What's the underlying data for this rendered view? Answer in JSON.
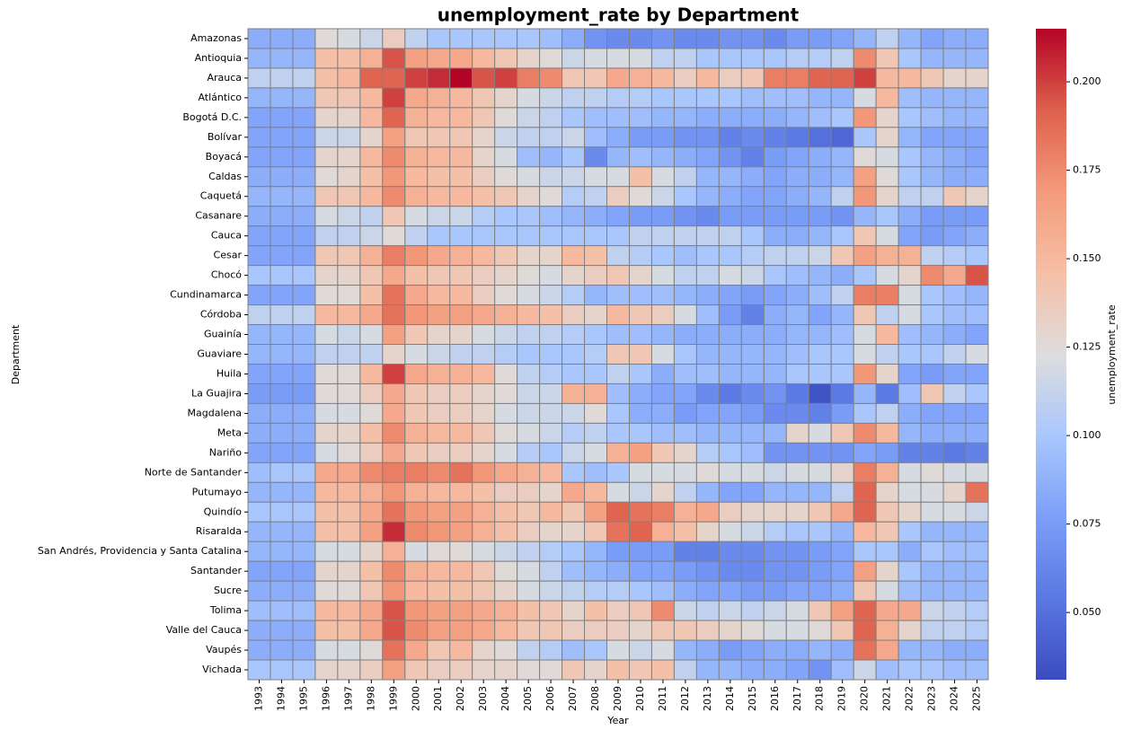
{
  "chart_data": {
    "type": "heatmap",
    "title": "unemployment_rate by Department",
    "xlabel": "Year",
    "ylabel": "Department",
    "colorbar_label": "unemployment_rate",
    "colormap": "coolwarm",
    "x": [
      1993,
      1994,
      1995,
      1996,
      1997,
      1998,
      1999,
      2000,
      2001,
      2002,
      2003,
      2004,
      2005,
      2006,
      2007,
      2008,
      2009,
      2010,
      2011,
      2012,
      2013,
      2014,
      2015,
      2016,
      2017,
      2018,
      2019,
      2020,
      2021,
      2022,
      2023,
      2024,
      2025
    ],
    "y": [
      "Amazonas",
      "Antioquia",
      "Arauca",
      "Atlántico",
      "Bogotá D.C.",
      "Bolívar",
      "Boyacá",
      "Caldas",
      "Caquetá",
      "Casanare",
      "Cauca",
      "Cesar",
      "Chocó",
      "Cundinamarca",
      "Córdoba",
      "Guainía",
      "Guaviare",
      "Huila",
      "La Guajira",
      "Magdalena",
      "Meta",
      "Nariño",
      "Norte de Santander",
      "Putumayo",
      "Quindío",
      "Risaralda",
      "San Andrés, Providencia y Santa Catalina",
      "Santander",
      "Sucre",
      "Tolima",
      "Valle del Cauca",
      "Vaupés",
      "Vichada"
    ],
    "values": [
      [
        0.085,
        0.085,
        0.085,
        0.125,
        0.12,
        0.115,
        0.135,
        0.11,
        0.1,
        0.1,
        0.1,
        0.1,
        0.1,
        0.095,
        0.085,
        0.07,
        0.065,
        0.065,
        0.07,
        0.065,
        0.065,
        0.07,
        0.07,
        0.065,
        0.075,
        0.075,
        0.08,
        0.09,
        0.11,
        0.09,
        0.08,
        0.085,
        0.085
      ],
      [
        0.09,
        0.09,
        0.09,
        0.145,
        0.145,
        0.155,
        0.195,
        0.165,
        0.16,
        0.16,
        0.15,
        0.14,
        0.13,
        0.125,
        0.115,
        0.12,
        0.12,
        0.12,
        0.11,
        0.11,
        0.1,
        0.1,
        0.1,
        0.1,
        0.105,
        0.105,
        0.11,
        0.175,
        0.14,
        0.1,
        0.09,
        0.09,
        0.09
      ],
      [
        0.11,
        0.11,
        0.11,
        0.145,
        0.15,
        0.19,
        0.19,
        0.2,
        0.205,
        0.215,
        0.195,
        0.2,
        0.18,
        0.175,
        0.14,
        0.14,
        0.16,
        0.155,
        0.15,
        0.135,
        0.15,
        0.135,
        0.14,
        0.18,
        0.18,
        0.19,
        0.19,
        0.2,
        0.15,
        0.15,
        0.14,
        0.13,
        0.13
      ],
      [
        0.09,
        0.09,
        0.09,
        0.14,
        0.14,
        0.15,
        0.2,
        0.16,
        0.155,
        0.15,
        0.14,
        0.13,
        0.12,
        0.115,
        0.11,
        0.11,
        0.105,
        0.105,
        0.1,
        0.1,
        0.1,
        0.1,
        0.095,
        0.095,
        0.095,
        0.09,
        0.09,
        0.12,
        0.15,
        0.095,
        0.09,
        0.09,
        0.09
      ],
      [
        0.08,
        0.08,
        0.08,
        0.13,
        0.13,
        0.15,
        0.19,
        0.155,
        0.15,
        0.15,
        0.14,
        0.125,
        0.115,
        0.11,
        0.1,
        0.095,
        0.095,
        0.095,
        0.09,
        0.09,
        0.085,
        0.085,
        0.085,
        0.085,
        0.09,
        0.095,
        0.1,
        0.17,
        0.13,
        0.1,
        0.095,
        0.09,
        0.09
      ],
      [
        0.08,
        0.08,
        0.08,
        0.115,
        0.115,
        0.13,
        0.165,
        0.14,
        0.14,
        0.14,
        0.13,
        0.115,
        0.11,
        0.11,
        0.115,
        0.095,
        0.085,
        0.075,
        0.075,
        0.07,
        0.07,
        0.06,
        0.065,
        0.06,
        0.055,
        0.05,
        0.045,
        0.1,
        0.13,
        0.09,
        0.08,
        0.08,
        0.08
      ],
      [
        0.08,
        0.08,
        0.08,
        0.13,
        0.13,
        0.15,
        0.175,
        0.155,
        0.15,
        0.15,
        0.13,
        0.12,
        0.095,
        0.09,
        0.1,
        0.065,
        0.09,
        0.095,
        0.09,
        0.085,
        0.08,
        0.07,
        0.06,
        0.075,
        0.08,
        0.085,
        0.09,
        0.125,
        0.12,
        0.1,
        0.09,
        0.085,
        0.08
      ],
      [
        0.085,
        0.085,
        0.085,
        0.125,
        0.13,
        0.145,
        0.17,
        0.15,
        0.145,
        0.145,
        0.135,
        0.125,
        0.12,
        0.115,
        0.115,
        0.12,
        0.12,
        0.145,
        0.12,
        0.11,
        0.09,
        0.09,
        0.085,
        0.08,
        0.085,
        0.085,
        0.09,
        0.165,
        0.125,
        0.1,
        0.09,
        0.085,
        0.085
      ],
      [
        0.09,
        0.09,
        0.09,
        0.14,
        0.14,
        0.15,
        0.175,
        0.155,
        0.15,
        0.15,
        0.145,
        0.14,
        0.13,
        0.125,
        0.105,
        0.11,
        0.135,
        0.125,
        0.115,
        0.1,
        0.09,
        0.085,
        0.08,
        0.08,
        0.085,
        0.09,
        0.11,
        0.17,
        0.13,
        0.11,
        0.11,
        0.14,
        0.13
      ],
      [
        0.085,
        0.085,
        0.085,
        0.12,
        0.115,
        0.11,
        0.14,
        0.12,
        0.115,
        0.115,
        0.105,
        0.1,
        0.1,
        0.095,
        0.09,
        0.085,
        0.08,
        0.075,
        0.075,
        0.07,
        0.065,
        0.075,
        0.075,
        0.075,
        0.075,
        0.075,
        0.07,
        0.09,
        0.1,
        0.085,
        0.075,
        0.075,
        0.075
      ],
      [
        0.08,
        0.08,
        0.08,
        0.11,
        0.11,
        0.115,
        0.125,
        0.11,
        0.1,
        0.1,
        0.1,
        0.1,
        0.1,
        0.1,
        0.1,
        0.1,
        0.1,
        0.11,
        0.11,
        0.11,
        0.11,
        0.11,
        0.1,
        0.085,
        0.085,
        0.09,
        0.1,
        0.14,
        0.12,
        0.08,
        0.075,
        0.08,
        0.085
      ],
      [
        0.08,
        0.08,
        0.08,
        0.14,
        0.14,
        0.155,
        0.18,
        0.17,
        0.16,
        0.155,
        0.15,
        0.14,
        0.13,
        0.13,
        0.15,
        0.145,
        0.11,
        0.105,
        0.1,
        0.095,
        0.1,
        0.1,
        0.105,
        0.11,
        0.11,
        0.115,
        0.14,
        0.165,
        0.155,
        0.155,
        0.11,
        0.105,
        0.1
      ],
      [
        0.1,
        0.1,
        0.1,
        0.13,
        0.13,
        0.14,
        0.16,
        0.145,
        0.14,
        0.14,
        0.135,
        0.13,
        0.125,
        0.12,
        0.13,
        0.135,
        0.14,
        0.13,
        0.12,
        0.11,
        0.11,
        0.12,
        0.115,
        0.1,
        0.095,
        0.09,
        0.085,
        0.1,
        0.12,
        0.13,
        0.175,
        0.16,
        0.195
      ],
      [
        0.08,
        0.08,
        0.08,
        0.125,
        0.125,
        0.145,
        0.185,
        0.16,
        0.15,
        0.15,
        0.135,
        0.125,
        0.12,
        0.115,
        0.105,
        0.09,
        0.095,
        0.095,
        0.095,
        0.09,
        0.085,
        0.08,
        0.075,
        0.08,
        0.085,
        0.095,
        0.11,
        0.18,
        0.18,
        0.12,
        0.1,
        0.095,
        0.09
      ],
      [
        0.11,
        0.11,
        0.11,
        0.15,
        0.15,
        0.16,
        0.185,
        0.17,
        0.165,
        0.165,
        0.16,
        0.155,
        0.15,
        0.145,
        0.135,
        0.13,
        0.15,
        0.14,
        0.135,
        0.12,
        0.095,
        0.075,
        0.06,
        0.085,
        0.09,
        0.08,
        0.09,
        0.14,
        0.11,
        0.12,
        0.1,
        0.095,
        0.095
      ],
      [
        0.09,
        0.09,
        0.09,
        0.12,
        0.115,
        0.12,
        0.165,
        0.14,
        0.13,
        0.13,
        0.12,
        0.115,
        0.11,
        0.11,
        0.105,
        0.1,
        0.095,
        0.095,
        0.09,
        0.085,
        0.085,
        0.085,
        0.085,
        0.085,
        0.09,
        0.09,
        0.095,
        0.12,
        0.15,
        0.095,
        0.09,
        0.085,
        0.08
      ],
      [
        0.09,
        0.09,
        0.09,
        0.11,
        0.11,
        0.11,
        0.13,
        0.12,
        0.115,
        0.11,
        0.11,
        0.105,
        0.1,
        0.1,
        0.1,
        0.105,
        0.14,
        0.14,
        0.12,
        0.1,
        0.09,
        0.09,
        0.09,
        0.09,
        0.095,
        0.1,
        0.1,
        0.12,
        0.11,
        0.1,
        0.1,
        0.11,
        0.12
      ],
      [
        0.08,
        0.08,
        0.08,
        0.125,
        0.125,
        0.15,
        0.2,
        0.16,
        0.155,
        0.155,
        0.15,
        0.125,
        0.11,
        0.105,
        0.1,
        0.1,
        0.11,
        0.1,
        0.085,
        0.095,
        0.095,
        0.09,
        0.09,
        0.09,
        0.1,
        0.1,
        0.1,
        0.17,
        0.13,
        0.08,
        0.075,
        0.08,
        0.08
      ],
      [
        0.075,
        0.075,
        0.075,
        0.125,
        0.125,
        0.135,
        0.16,
        0.14,
        0.135,
        0.135,
        0.13,
        0.125,
        0.115,
        0.115,
        0.155,
        0.155,
        0.095,
        0.085,
        0.08,
        0.08,
        0.065,
        0.055,
        0.065,
        0.07,
        0.055,
        0.035,
        0.055,
        0.09,
        0.055,
        0.095,
        0.14,
        0.11,
        0.1
      ],
      [
        0.085,
        0.085,
        0.085,
        0.12,
        0.12,
        0.125,
        0.16,
        0.14,
        0.135,
        0.135,
        0.13,
        0.12,
        0.115,
        0.115,
        0.115,
        0.125,
        0.1,
        0.085,
        0.085,
        0.075,
        0.08,
        0.08,
        0.075,
        0.065,
        0.065,
        0.06,
        0.075,
        0.1,
        0.11,
        0.085,
        0.08,
        0.08,
        0.08
      ],
      [
        0.085,
        0.085,
        0.085,
        0.13,
        0.13,
        0.145,
        0.175,
        0.155,
        0.15,
        0.15,
        0.14,
        0.125,
        0.12,
        0.115,
        0.105,
        0.11,
        0.1,
        0.1,
        0.095,
        0.095,
        0.09,
        0.09,
        0.09,
        0.09,
        0.13,
        0.12,
        0.14,
        0.175,
        0.15,
        0.09,
        0.085,
        0.085,
        0.085
      ],
      [
        0.08,
        0.08,
        0.08,
        0.12,
        0.125,
        0.135,
        0.16,
        0.14,
        0.135,
        0.135,
        0.13,
        0.12,
        0.105,
        0.1,
        0.115,
        0.12,
        0.155,
        0.165,
        0.14,
        0.13,
        0.105,
        0.1,
        0.095,
        0.07,
        0.07,
        0.07,
        0.07,
        0.08,
        0.075,
        0.06,
        0.06,
        0.055,
        0.06
      ],
      [
        0.095,
        0.1,
        0.1,
        0.16,
        0.16,
        0.175,
        0.18,
        0.18,
        0.175,
        0.185,
        0.17,
        0.16,
        0.155,
        0.15,
        0.1,
        0.095,
        0.1,
        0.12,
        0.12,
        0.12,
        0.125,
        0.12,
        0.12,
        0.115,
        0.12,
        0.12,
        0.13,
        0.18,
        0.155,
        0.12,
        0.125,
        0.12,
        0.12
      ],
      [
        0.09,
        0.09,
        0.09,
        0.15,
        0.15,
        0.155,
        0.17,
        0.155,
        0.15,
        0.15,
        0.145,
        0.135,
        0.135,
        0.13,
        0.16,
        0.15,
        0.12,
        0.115,
        0.13,
        0.11,
        0.09,
        0.08,
        0.08,
        0.09,
        0.09,
        0.09,
        0.11,
        0.19,
        0.13,
        0.12,
        0.12,
        0.13,
        0.185
      ],
      [
        0.1,
        0.1,
        0.1,
        0.145,
        0.145,
        0.16,
        0.185,
        0.17,
        0.165,
        0.165,
        0.155,
        0.145,
        0.14,
        0.15,
        0.14,
        0.165,
        0.19,
        0.185,
        0.18,
        0.155,
        0.16,
        0.135,
        0.13,
        0.13,
        0.13,
        0.14,
        0.16,
        0.19,
        0.14,
        0.13,
        0.12,
        0.12,
        0.115
      ],
      [
        0.09,
        0.09,
        0.09,
        0.145,
        0.145,
        0.165,
        0.205,
        0.175,
        0.17,
        0.165,
        0.155,
        0.145,
        0.135,
        0.13,
        0.13,
        0.14,
        0.185,
        0.19,
        0.155,
        0.145,
        0.13,
        0.12,
        0.115,
        0.105,
        0.1,
        0.1,
        0.09,
        0.15,
        0.14,
        0.1,
        0.09,
        0.09,
        0.09
      ],
      [
        0.09,
        0.09,
        0.09,
        0.12,
        0.12,
        0.13,
        0.155,
        0.12,
        0.125,
        0.125,
        0.12,
        0.115,
        0.11,
        0.105,
        0.1,
        0.09,
        0.075,
        0.075,
        0.075,
        0.06,
        0.06,
        0.065,
        0.065,
        0.07,
        0.07,
        0.075,
        0.08,
        0.1,
        0.1,
        0.085,
        0.1,
        0.095,
        0.095
      ],
      [
        0.08,
        0.08,
        0.08,
        0.13,
        0.13,
        0.145,
        0.175,
        0.155,
        0.15,
        0.15,
        0.14,
        0.125,
        0.12,
        0.11,
        0.095,
        0.09,
        0.085,
        0.08,
        0.08,
        0.075,
        0.07,
        0.065,
        0.065,
        0.07,
        0.07,
        0.075,
        0.08,
        0.165,
        0.13,
        0.1,
        0.09,
        0.09,
        0.09
      ],
      [
        0.085,
        0.085,
        0.085,
        0.125,
        0.125,
        0.14,
        0.17,
        0.15,
        0.145,
        0.145,
        0.14,
        0.13,
        0.12,
        0.115,
        0.11,
        0.105,
        0.105,
        0.1,
        0.095,
        0.085,
        0.08,
        0.08,
        0.075,
        0.075,
        0.08,
        0.08,
        0.085,
        0.14,
        0.12,
        0.095,
        0.09,
        0.09,
        0.09
      ],
      [
        0.095,
        0.095,
        0.095,
        0.15,
        0.15,
        0.16,
        0.195,
        0.17,
        0.165,
        0.165,
        0.16,
        0.155,
        0.145,
        0.14,
        0.13,
        0.145,
        0.135,
        0.14,
        0.175,
        0.115,
        0.11,
        0.115,
        0.11,
        0.115,
        0.12,
        0.14,
        0.165,
        0.19,
        0.16,
        0.16,
        0.115,
        0.11,
        0.105
      ],
      [
        0.085,
        0.085,
        0.085,
        0.145,
        0.145,
        0.16,
        0.195,
        0.175,
        0.165,
        0.165,
        0.16,
        0.15,
        0.14,
        0.14,
        0.135,
        0.135,
        0.135,
        0.13,
        0.14,
        0.14,
        0.135,
        0.13,
        0.125,
        0.12,
        0.12,
        0.125,
        0.14,
        0.19,
        0.155,
        0.13,
        0.11,
        0.11,
        0.105
      ],
      [
        0.085,
        0.085,
        0.085,
        0.12,
        0.12,
        0.125,
        0.185,
        0.16,
        0.14,
        0.15,
        0.13,
        0.125,
        0.11,
        0.105,
        0.095,
        0.1,
        0.12,
        0.115,
        0.12,
        0.09,
        0.085,
        0.075,
        0.08,
        0.085,
        0.085,
        0.09,
        0.085,
        0.185,
        0.16,
        0.09,
        0.09,
        0.085,
        0.085
      ],
      [
        0.1,
        0.1,
        0.1,
        0.13,
        0.13,
        0.135,
        0.165,
        0.14,
        0.135,
        0.135,
        0.13,
        0.13,
        0.125,
        0.125,
        0.14,
        0.13,
        0.145,
        0.14,
        0.145,
        0.11,
        0.09,
        0.09,
        0.085,
        0.085,
        0.08,
        0.07,
        0.095,
        0.115,
        0.095,
        0.1,
        0.1,
        0.095,
        0.095
      ]
    ],
    "zlim": [
      0.031,
      0.215
    ],
    "zticks": [
      {
        "value": 0.05,
        "label": "0.050"
      },
      {
        "value": 0.075,
        "label": "0.075"
      },
      {
        "value": 0.1,
        "label": "0.100"
      },
      {
        "value": 0.125,
        "label": "0.125"
      },
      {
        "value": 0.15,
        "label": "0.150"
      },
      {
        "value": 0.175,
        "label": "0.175"
      },
      {
        "value": 0.2,
        "label": "0.200"
      }
    ]
  }
}
